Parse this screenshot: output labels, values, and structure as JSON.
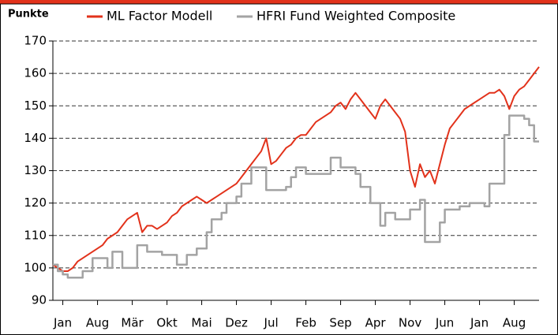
{
  "chart_data": {
    "type": "line",
    "ylabel": "Punkte",
    "categories": [
      null,
      null,
      "Jan",
      null,
      null,
      null,
      null,
      null,
      null,
      "Aug",
      null,
      null,
      null,
      null,
      null,
      null,
      "Mär",
      null,
      null,
      null,
      null,
      null,
      null,
      "Okt",
      null,
      null,
      null,
      null,
      null,
      null,
      "Mai",
      null,
      null,
      null,
      null,
      null,
      null,
      "Dez",
      null,
      null,
      null,
      null,
      null,
      null,
      "Jul",
      null,
      null,
      null,
      null,
      null,
      null,
      "Feb",
      null,
      null,
      null,
      null,
      null,
      null,
      "Sep",
      null,
      null,
      null,
      null,
      null,
      null,
      "Apr",
      null,
      null,
      null,
      null,
      null,
      null,
      "Nov",
      null,
      null,
      null,
      null,
      null,
      null,
      "Jun",
      null,
      null,
      null,
      null,
      null,
      null,
      "Jan",
      null,
      null,
      null,
      null,
      null,
      null,
      "Aug",
      null,
      null,
      null,
      null,
      null
    ],
    "series": [
      {
        "name": "ML Factor Modell",
        "color": "#e2321b",
        "step": false,
        "values": [
          101,
          100,
          99,
          99,
          100,
          102,
          103,
          104,
          105,
          106,
          107,
          109,
          110,
          111,
          113,
          115,
          116,
          117,
          111,
          113,
          113,
          112,
          113,
          114,
          116,
          117,
          119,
          120,
          121,
          122,
          121,
          120,
          121,
          122,
          123,
          124,
          125,
          126,
          128,
          130,
          132,
          134,
          136,
          140,
          132,
          133,
          135,
          137,
          138,
          140,
          141,
          141,
          143,
          145,
          146,
          147,
          148,
          150,
          151,
          149,
          152,
          154,
          152,
          150,
          148,
          146,
          150,
          152,
          150,
          148,
          146,
          142,
          130,
          125,
          132,
          128,
          130,
          126,
          132,
          138,
          143,
          145,
          147,
          149,
          150,
          151,
          152,
          153,
          154,
          154,
          155,
          153,
          149,
          153,
          155,
          156,
          158,
          160,
          162
        ]
      },
      {
        "name": "HFRI Fund Weighted Composite",
        "color": "#a3a3a3",
        "step": true,
        "values": [
          101,
          99,
          98,
          97,
          97,
          97,
          99,
          99,
          103,
          103,
          103,
          100,
          105,
          105,
          100,
          100,
          100,
          107,
          107,
          105,
          105,
          105,
          104,
          104,
          104,
          101,
          101,
          104,
          104,
          106,
          106,
          111,
          115,
          115,
          117,
          120,
          120,
          122,
          126,
          126,
          131,
          131,
          131,
          124,
          124,
          124,
          124,
          125,
          128,
          131,
          131,
          129,
          129,
          129,
          129,
          129,
          134,
          134,
          131,
          131,
          131,
          129,
          125,
          125,
          120,
          120,
          113,
          117,
          117,
          115,
          115,
          115,
          118,
          118,
          121,
          108,
          108,
          108,
          114,
          118,
          118,
          118,
          119,
          119,
          120,
          120,
          120,
          119,
          126,
          126,
          126,
          141,
          147,
          147,
          147,
          146,
          144,
          139,
          139
        ]
      }
    ],
    "ylim": [
      90,
      170
    ],
    "yticks": [
      90,
      100,
      110,
      120,
      130,
      140,
      150,
      160,
      170
    ],
    "grid": true
  }
}
